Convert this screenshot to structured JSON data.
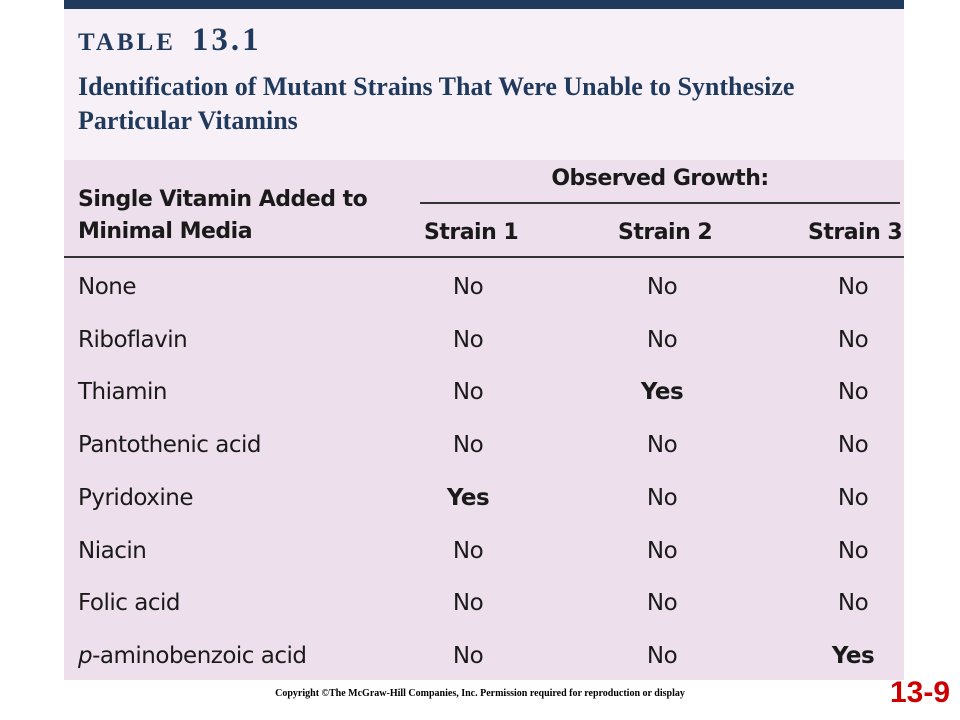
{
  "table": {
    "label_word": "TABLE",
    "label_num": "13.1",
    "caption": "Identification of Mutant Strains That Were Unable to Synthesize Particular Vitamins",
    "left_header": "Single Vitamin Added to Minimal Media",
    "group_header": "Observed Growth:",
    "strain_headers": [
      "Strain 1",
      "Strain 2",
      "Strain 3"
    ],
    "rows": [
      {
        "vitamin_prefix": "",
        "vitamin": "None",
        "s1": "No",
        "s2": "No",
        "s3": "No"
      },
      {
        "vitamin_prefix": "",
        "vitamin": "Riboflavin",
        "s1": "No",
        "s2": "No",
        "s3": "No"
      },
      {
        "vitamin_prefix": "",
        "vitamin": "Thiamin",
        "s1": "No",
        "s2": "Yes",
        "s3": "No"
      },
      {
        "vitamin_prefix": "",
        "vitamin": "Pantothenic acid",
        "s1": "No",
        "s2": "No",
        "s3": "No"
      },
      {
        "vitamin_prefix": "",
        "vitamin": "Pyridoxine",
        "s1": "Yes",
        "s2": "No",
        "s3": "No"
      },
      {
        "vitamin_prefix": "",
        "vitamin": "Niacin",
        "s1": "No",
        "s2": "No",
        "s3": "No"
      },
      {
        "vitamin_prefix": "",
        "vitamin": "Folic acid",
        "s1": "No",
        "s2": "No",
        "s3": "No"
      },
      {
        "vitamin_prefix": "p",
        "vitamin": "-aminobenzoic acid",
        "s1": "No",
        "s2": "No",
        "s3": "Yes"
      }
    ]
  },
  "footer": {
    "copyright": "Copyright ©The McGraw-Hill Companies, Inc. Permission required for reproduction or display",
    "slide_number": "13-9"
  },
  "colors": {
    "title_color": "#1f3a5c",
    "slide_number_color": "#cc0000",
    "table_background": "#eedfec"
  }
}
